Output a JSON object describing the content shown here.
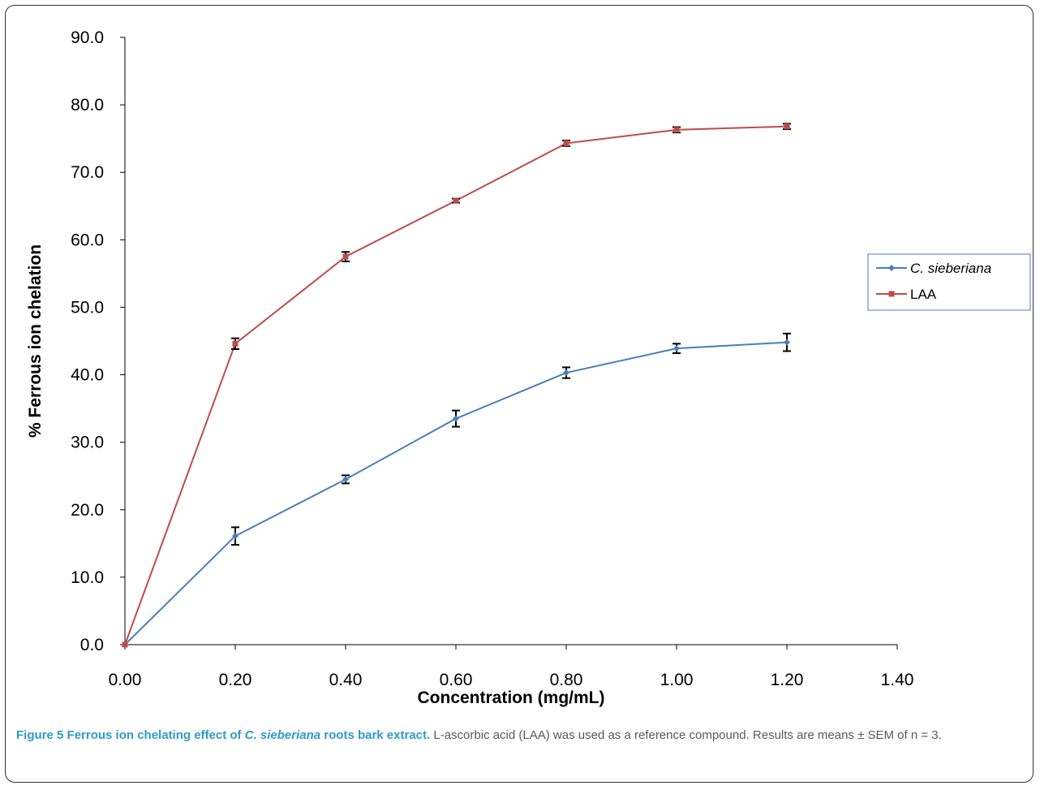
{
  "chart_data": {
    "type": "line",
    "xlabel": "Concentration (mg/mL)",
    "ylabel": "% Ferrous ion chelation",
    "xlim": [
      0,
      1.4
    ],
    "ylim": [
      0,
      90
    ],
    "x_ticks": [
      "0.00",
      "0.20",
      "0.40",
      "0.60",
      "0.80",
      "1.00",
      "1.20",
      "1.40"
    ],
    "y_ticks": [
      "0.0",
      "10.0",
      "20.0",
      "30.0",
      "40.0",
      "50.0",
      "60.0",
      "70.0",
      "80.0",
      "90.0"
    ],
    "grid": false,
    "legend_position": "right",
    "series": [
      {
        "name": "C. sieberiana",
        "color": "#4a7ebb",
        "marker": "diamond",
        "x": [
          0,
          0.2,
          0.4,
          0.6,
          0.8,
          1.0,
          1.2
        ],
        "values": [
          0,
          16.1,
          24.5,
          33.5,
          40.3,
          43.9,
          44.8
        ],
        "error": [
          0,
          1.3,
          0.6,
          1.2,
          0.8,
          0.7,
          1.3
        ]
      },
      {
        "name": "LAA",
        "color": "#be4b48",
        "marker": "square",
        "x": [
          0,
          0.2,
          0.4,
          0.6,
          0.8,
          1.0,
          1.2
        ],
        "values": [
          0,
          44.6,
          57.5,
          65.8,
          74.3,
          76.3,
          76.8
        ],
        "error": [
          0,
          0.8,
          0.7,
          0.3,
          0.4,
          0.4,
          0.4
        ]
      }
    ]
  },
  "caption": {
    "label": "Figure 5",
    "title_pre": "Ferrous ion chelating effect of ",
    "title_italic": "C. sieberiana",
    "title_post": " roots bark extract.",
    "body": "L-ascorbic acid (LAA) was used as a reference compound. Results are means ± SEM of n = 3."
  }
}
